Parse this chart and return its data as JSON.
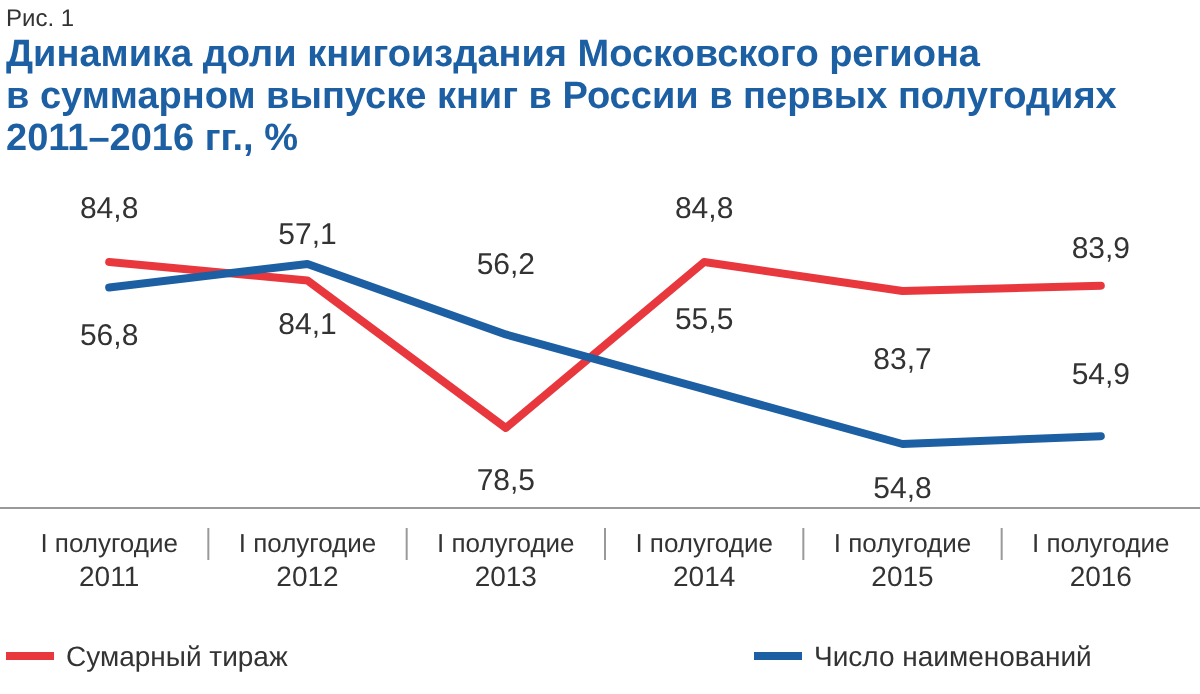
{
  "chart_data": {
    "type": "line",
    "title": "Динамика доли книгоиздания Московского региона\nв суммарном выпуске книг в России в первых полугодиях\n2011–2016 гг., %",
    "annotations": [
      "Рис. 1"
    ],
    "categories": [
      "I полугодие 2011",
      "I полугодие 2012",
      "I полугодие 2013",
      "I полугодие 2014",
      "I полугодие 2015",
      "I полугодие 2016"
    ],
    "series": [
      {
        "name": "Сумарный тираж",
        "color": "#e8383d",
        "values": [
          84.8,
          84.1,
          78.5,
          84.8,
          83.7,
          83.9
        ],
        "value_labels": [
          "84,8",
          "84,1",
          "78,5",
          "84,8",
          "83,7",
          "83,9"
        ]
      },
      {
        "name": "Число наименований",
        "color": "#1d5fa3",
        "axis": "y2",
        "values": [
          56.8,
          57.1,
          56.2,
          55.5,
          54.8,
          54.9
        ],
        "value_labels": [
          "56,8",
          "57,1",
          "56,2",
          "55,5",
          "54,8",
          "54,9"
        ]
      }
    ],
    "tick_labels": "x",
    "legend": "bottom",
    "marker": "none",
    "line_style": "solid"
  }
}
